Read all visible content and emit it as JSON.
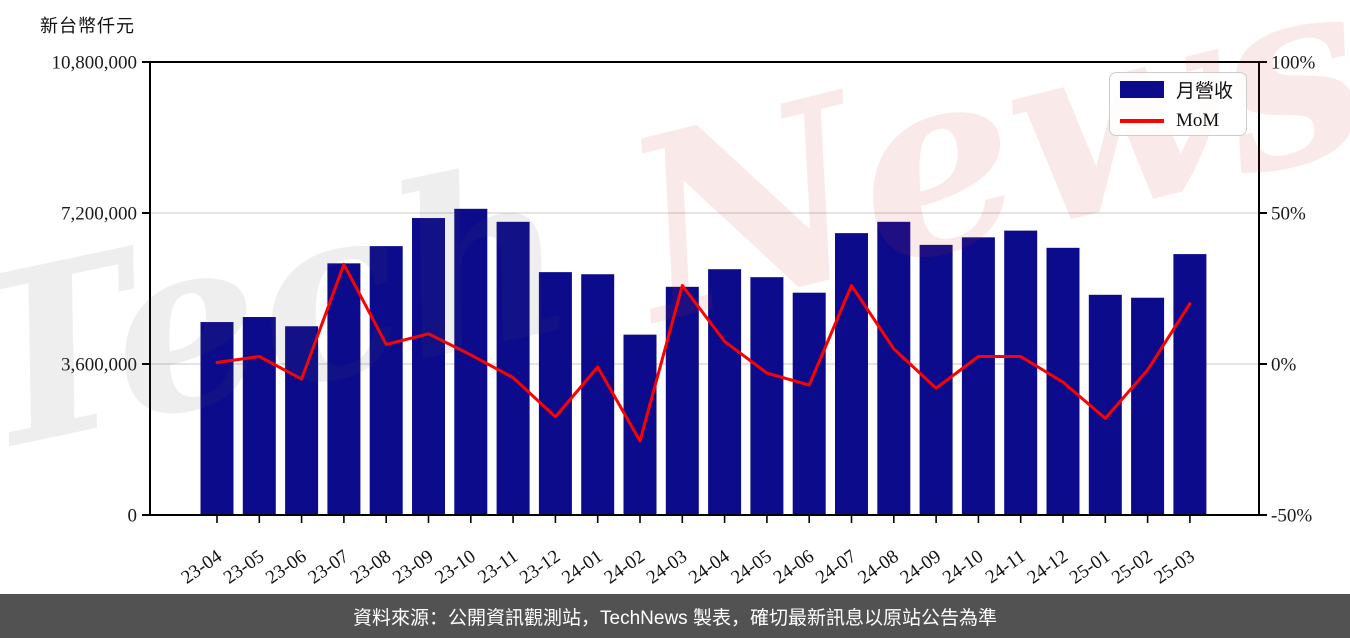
{
  "unit_label": "新台幣仟元",
  "legend": {
    "bar_label": "月營收",
    "line_label": "MoM"
  },
  "watermark": {
    "part1": "Tech",
    "part2": "News"
  },
  "footer": {
    "text": "資料來源：公開資訊觀測站，TechNews 製表，確切最新訊息以原站公告為準",
    "background": "#525252",
    "text_color": "#ffffff"
  },
  "chart_data": {
    "type": "bar",
    "combo": "bar+line",
    "title": "",
    "categories": [
      "23-04",
      "23-05",
      "23-06",
      "23-07",
      "23-08",
      "23-09",
      "23-10",
      "23-11",
      "23-12",
      "24-01",
      "24-02",
      "24-03",
      "24-04",
      "24-05",
      "24-06",
      "24-07",
      "24-08",
      "24-09",
      "24-10",
      "24-11",
      "24-12",
      "25-01",
      "25-02",
      "25-03"
    ],
    "series": [
      {
        "name": "月營收",
        "type": "bar",
        "axis": "left",
        "unit": "新台幣仟元",
        "color": "#0B0B8C",
        "values": [
          4600000,
          4720000,
          4500000,
          6000000,
          6410000,
          7080000,
          7300000,
          6990000,
          5790000,
          5740000,
          4300000,
          5440000,
          5860000,
          5670000,
          5300000,
          6720000,
          6990000,
          6440000,
          6620000,
          6780000,
          6370000,
          5250000,
          5180000,
          6220000
        ]
      },
      {
        "name": "MoM",
        "type": "line",
        "axis": "right",
        "unit": "%",
        "color": "#FF0000",
        "values": [
          0.5,
          2.5,
          -5,
          33,
          6.5,
          10,
          3,
          -4.5,
          -17.5,
          -1,
          -25.5,
          26,
          7.5,
          -3,
          -7,
          26,
          5,
          -8,
          2.5,
          2.5,
          -6,
          -18,
          -2,
          20
        ]
      }
    ],
    "left_axis": {
      "title": "新台幣仟元",
      "min": 0,
      "max": 10800000,
      "tick_values": [
        0,
        3600000,
        7200000,
        10800000
      ],
      "tick_labels": [
        "0",
        "3,600,000",
        "7,200,000",
        "10,800,000"
      ]
    },
    "right_axis": {
      "min": -50,
      "max": 100,
      "tick_values": [
        -50,
        0,
        50,
        100
      ],
      "tick_labels": [
        "-50%",
        "0%",
        "50%",
        "100%"
      ]
    },
    "grid": {
      "horizontal_at": [
        3600000,
        7200000
      ],
      "color": "#d3d3d3",
      "visible": true
    },
    "legend_position": "upper right"
  }
}
